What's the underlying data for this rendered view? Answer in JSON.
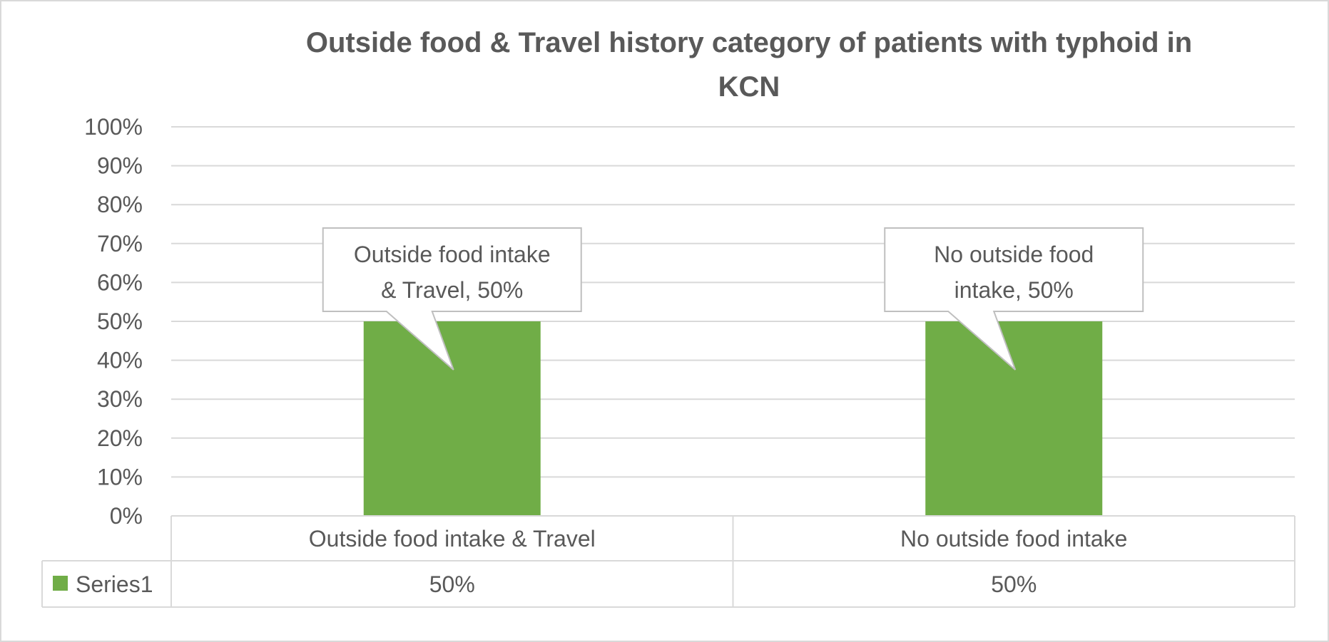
{
  "chart_data": {
    "type": "bar",
    "title": "Outside food & Travel history category of patients with typhoid in KCN",
    "title_lines": [
      "Outside food & Travel history category of patients with typhoid in",
      "KCN"
    ],
    "categories": [
      "Outside food intake & Travel",
      "No outside food intake"
    ],
    "series": [
      {
        "name": "Series1",
        "values": [
          0.5,
          0.5
        ],
        "value_labels": [
          "50%",
          "50%"
        ],
        "color": "#70ad47"
      }
    ],
    "y_ticks": [
      "0%",
      "10%",
      "20%",
      "30%",
      "40%",
      "50%",
      "60%",
      "70%",
      "80%",
      "90%",
      "100%"
    ],
    "ylim": [
      0,
      1
    ],
    "grid": true,
    "callouts": [
      {
        "lines": [
          "Outside food intake",
          "& Travel, 50%"
        ]
      },
      {
        "lines": [
          "No outside food",
          "intake, 50%"
        ]
      }
    ],
    "data_table": true
  },
  "colors": {
    "bar": "#70ad47",
    "grid": "#d9d9d9",
    "text": "#595959",
    "border": "#d9d9d9"
  }
}
